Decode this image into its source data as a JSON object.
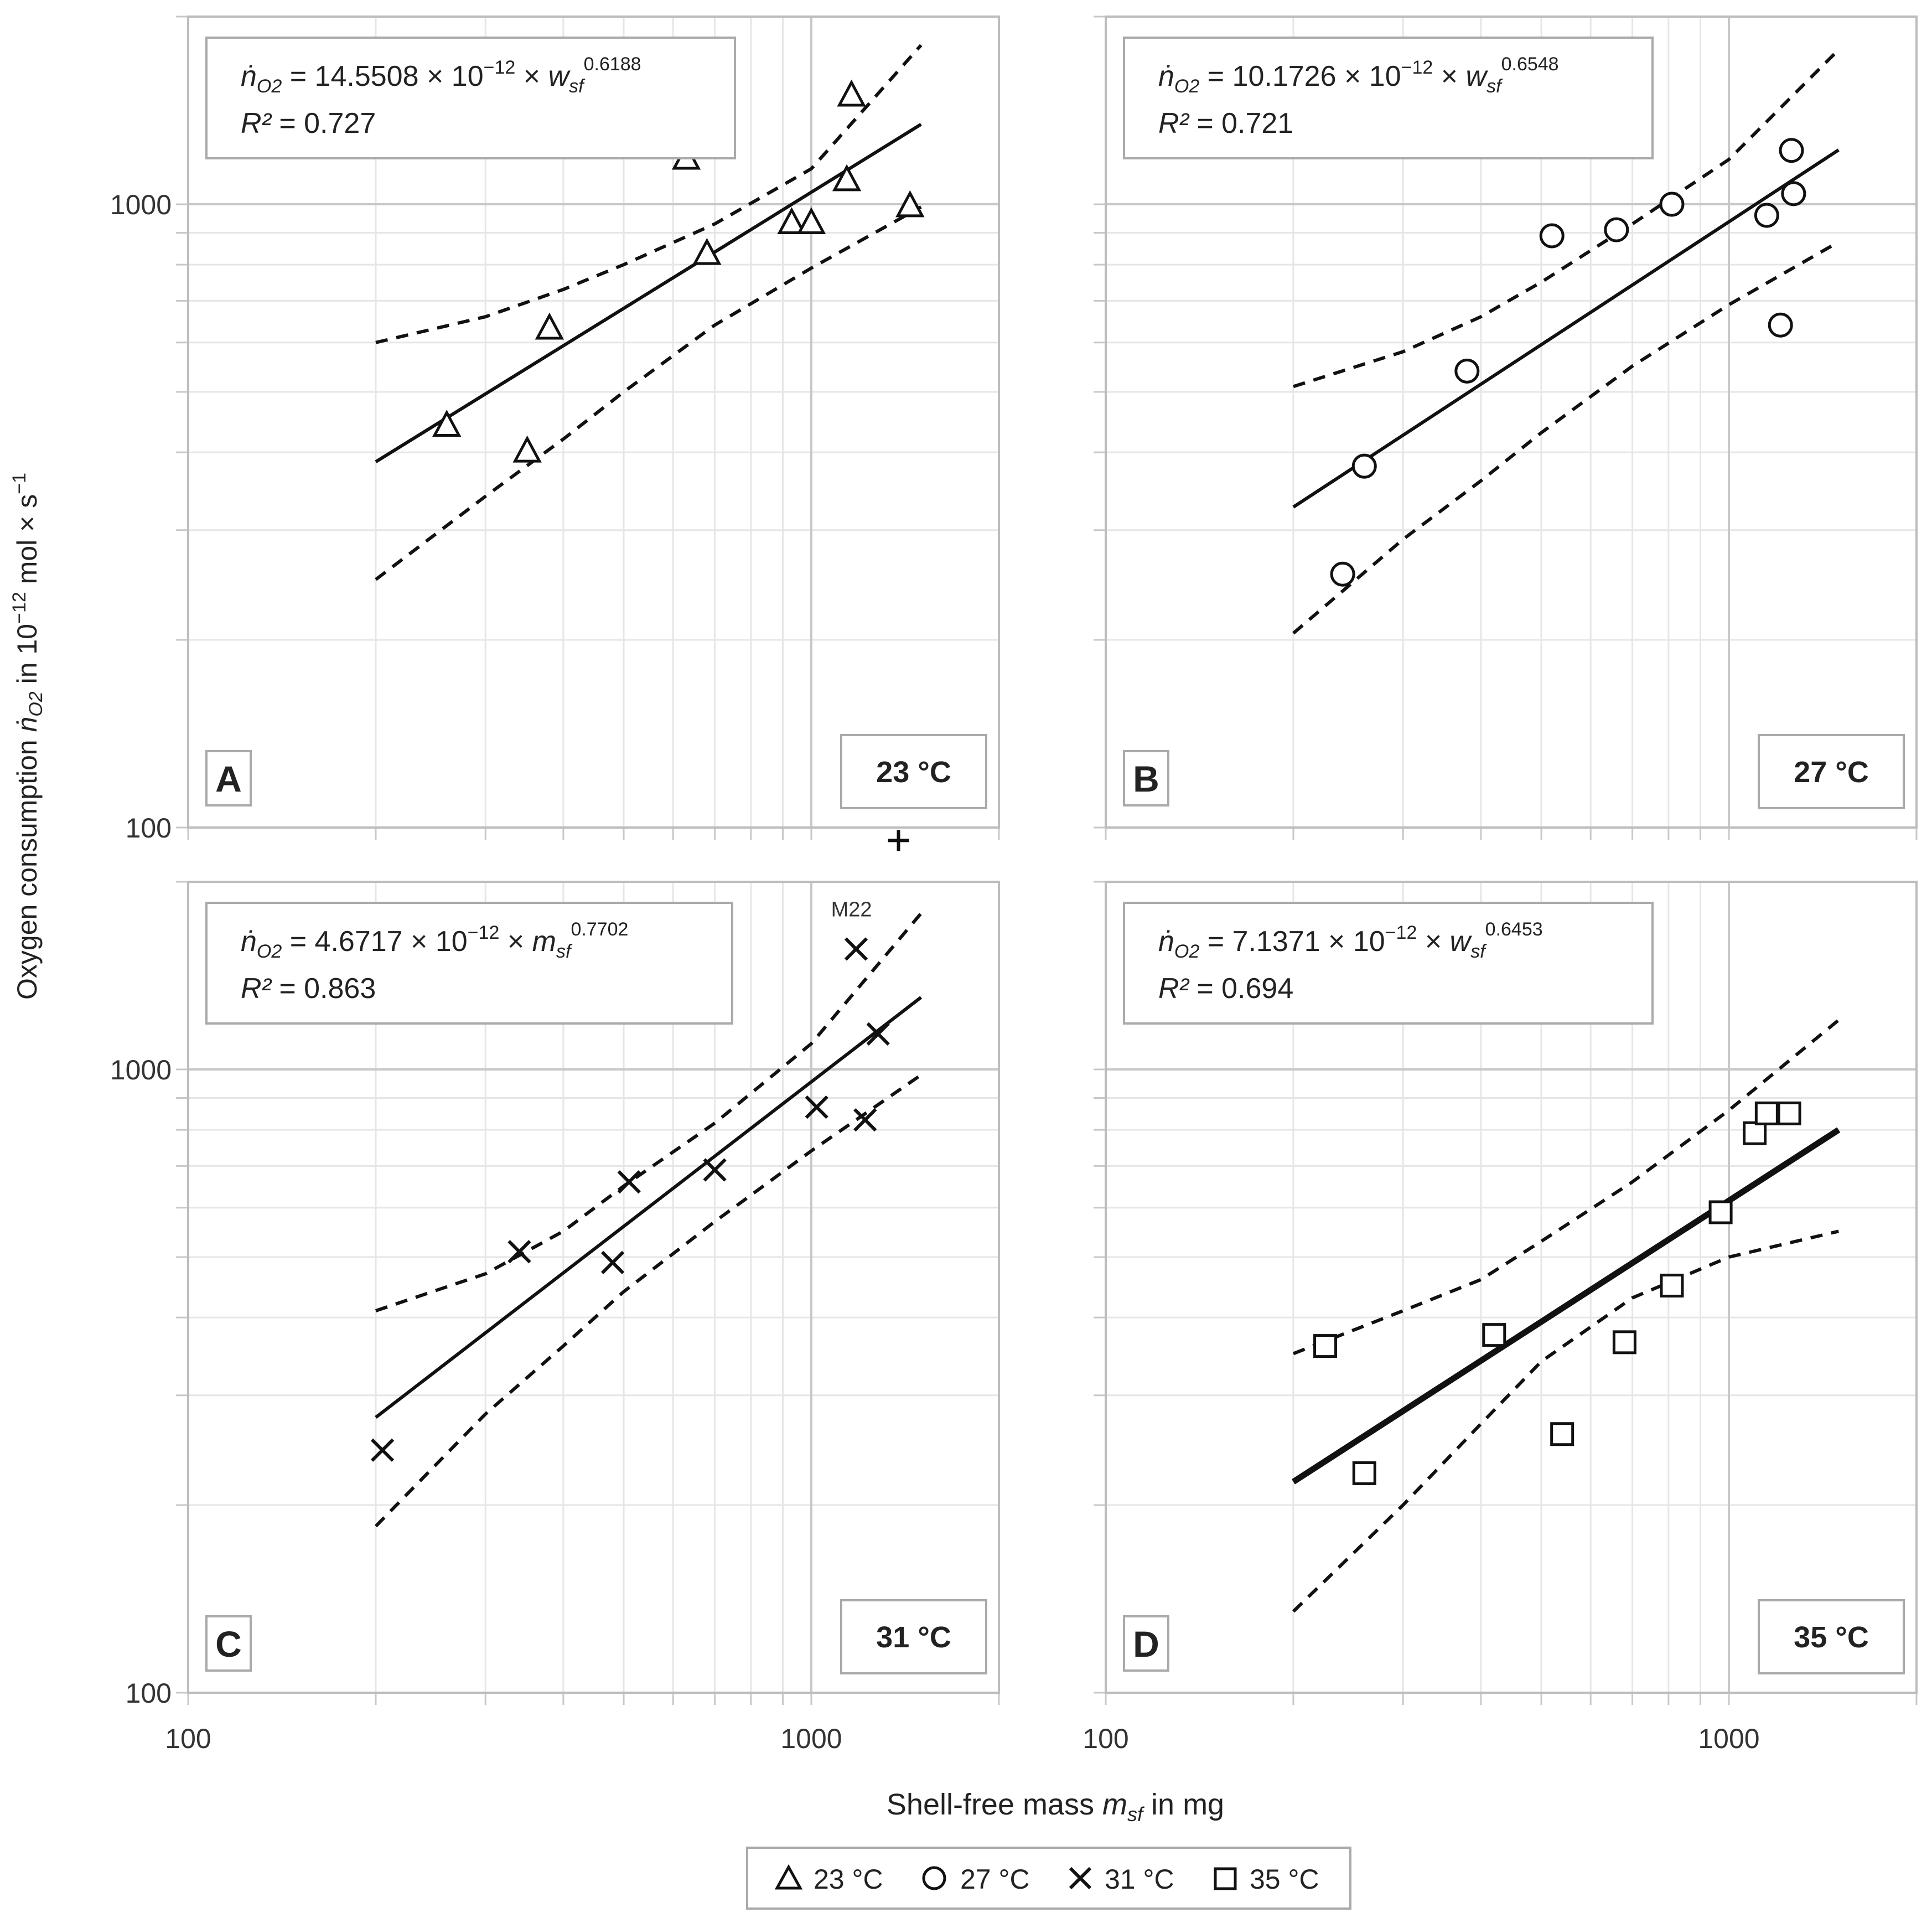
{
  "figure": {
    "ylabel_main": "Oxygen consumption ",
    "ylabel_symbol": "ṅ",
    "ylabel_sub": "O2",
    "ylabel_in": " in 10",
    "ylabel_exp": "−12",
    "ylabel_unit": " mol × s",
    "ylabel_unit_exp": "−1",
    "xlabel_main": "Shell-free mass ",
    "xlabel_symbol": "m",
    "xlabel_sub": "sf",
    "xlabel_unit": " in mg"
  },
  "legend": {
    "items": [
      {
        "marker": "triangle",
        "label": "23 °C"
      },
      {
        "marker": "circle",
        "label": "27 °C"
      },
      {
        "marker": "cross",
        "label": "31 °C"
      },
      {
        "marker": "square",
        "label": "35 °C"
      }
    ]
  },
  "chart_data": [
    {
      "type": "scatter",
      "panel": "A",
      "temp_label": "23 °C",
      "marker": "triangle",
      "eq_lhs": "ṅ",
      "eq_lhs_sub": "O2",
      "eq_mid": " = 14.5508 × 10",
      "eq_exp": "−12",
      "eq_times": " × ",
      "eq_var": "w",
      "eq_var_sub": "sf",
      "eq_pow": "0.6188",
      "r2_label": "R²",
      "r2_value": " = 0.727",
      "xlim": [
        100,
        2000
      ],
      "ylim": [
        100,
        2000
      ],
      "x_scale": "log",
      "y_scale": "log",
      "xticks": [],
      "yticks": [
        "100",
        "1000"
      ],
      "fit": {
        "coef": 14.5508,
        "exp": 0.6188,
        "x_range": [
          200,
          1500
        ]
      },
      "ci_upper": [
        [
          200,
          600
        ],
        [
          300,
          660
        ],
        [
          400,
          730
        ],
        [
          500,
          800
        ],
        [
          700,
          930
        ],
        [
          1000,
          1140
        ],
        [
          1500,
          1800
        ]
      ],
      "ci_lower": [
        [
          200,
          250
        ],
        [
          300,
          340
        ],
        [
          400,
          420
        ],
        [
          500,
          500
        ],
        [
          700,
          640
        ],
        [
          1000,
          790
        ],
        [
          1500,
          990
        ]
      ],
      "points": [
        [
          260,
          440
        ],
        [
          350,
          400
        ],
        [
          380,
          630
        ],
        [
          630,
          1180
        ],
        [
          680,
          830
        ],
        [
          930,
          930
        ],
        [
          1000,
          930
        ],
        [
          1140,
          1090
        ],
        [
          1160,
          1490
        ],
        [
          1440,
          990
        ]
      ],
      "annotations": []
    },
    {
      "type": "scatter",
      "panel": "B",
      "temp_label": "27 °C",
      "marker": "circle",
      "eq_lhs": "ṅ",
      "eq_lhs_sub": "O2",
      "eq_mid": " = 10.1726 × 10",
      "eq_exp": "−12",
      "eq_times": " × ",
      "eq_var": "w",
      "eq_var_sub": "sf",
      "eq_pow": "0.6548",
      "r2_label": "R²",
      "r2_value": " = 0.721",
      "xlim": [
        100,
        2000
      ],
      "ylim": [
        100,
        2000
      ],
      "x_scale": "log",
      "y_scale": "log",
      "xticks": [],
      "yticks": [],
      "fit": {
        "coef": 10.1726,
        "exp": 0.6548,
        "x_range": [
          200,
          1500
        ]
      },
      "ci_upper": [
        [
          200,
          510
        ],
        [
          300,
          580
        ],
        [
          400,
          660
        ],
        [
          500,
          750
        ],
        [
          700,
          930
        ],
        [
          1000,
          1180
        ],
        [
          1500,
          1770
        ]
      ],
      "ci_lower": [
        [
          200,
          205
        ],
        [
          300,
          290
        ],
        [
          400,
          360
        ],
        [
          500,
          430
        ],
        [
          700,
          550
        ],
        [
          1000,
          690
        ],
        [
          1500,
          870
        ]
      ],
      "points": [
        [
          240,
          255
        ],
        [
          260,
          380
        ],
        [
          380,
          540
        ],
        [
          520,
          890
        ],
        [
          660,
          910
        ],
        [
          810,
          1000
        ],
        [
          1150,
          960
        ],
        [
          1210,
          640
        ],
        [
          1260,
          1220
        ],
        [
          1270,
          1040
        ]
      ],
      "annotations": []
    },
    {
      "type": "scatter",
      "panel": "C",
      "temp_label": "31 °C",
      "marker": "cross",
      "eq_lhs": "ṅ",
      "eq_lhs_sub": "O2",
      "eq_mid": " = 4.6717 × 10",
      "eq_exp": "−12",
      "eq_times": " × ",
      "eq_var": "m",
      "eq_var_sub": "sf",
      "eq_pow": "0.7702",
      "r2_label": "R²",
      "r2_value": " = 0.863",
      "xlim": [
        100,
        2000
      ],
      "ylim": [
        100,
        2000
      ],
      "x_scale": "log",
      "y_scale": "log",
      "xticks": [
        "100",
        "1000"
      ],
      "yticks": [
        "100",
        "1000"
      ],
      "fit": {
        "coef": 4.6717,
        "exp": 0.7702,
        "x_range": [
          200,
          1500
        ]
      },
      "ci_upper": [
        [
          200,
          410
        ],
        [
          300,
          470
        ],
        [
          400,
          550
        ],
        [
          500,
          650
        ],
        [
          700,
          820
        ],
        [
          1000,
          1100
        ],
        [
          1500,
          1780
        ]
      ],
      "ci_lower": [
        [
          200,
          185
        ],
        [
          300,
          280
        ],
        [
          400,
          360
        ],
        [
          500,
          440
        ],
        [
          700,
          570
        ],
        [
          1000,
          740
        ],
        [
          1500,
          980
        ]
      ],
      "points": [
        [
          205,
          245
        ],
        [
          340,
          510
        ],
        [
          480,
          490
        ],
        [
          510,
          660
        ],
        [
          700,
          690
        ],
        [
          1020,
          870
        ],
        [
          1180,
          1560
        ],
        [
          1220,
          830
        ],
        [
          1280,
          1140
        ]
      ],
      "outliers": [
        [
          1380,
          2330
        ]
      ],
      "annotations": [
        {
          "label": "M22",
          "x": 1160,
          "y": 1760
        }
      ]
    },
    {
      "type": "scatter",
      "panel": "D",
      "temp_label": "35 °C",
      "marker": "square",
      "eq_lhs": "ṅ",
      "eq_lhs_sub": "O2",
      "eq_mid": " = 7.1371 × 10",
      "eq_exp": "−12",
      "eq_times": " × ",
      "eq_var": "w",
      "eq_var_sub": "sf",
      "eq_pow": "0.6453",
      "r2_label": "R²",
      "r2_value": " = 0.694",
      "xlim": [
        100,
        2000
      ],
      "ylim": [
        100,
        2000
      ],
      "x_scale": "log",
      "y_scale": "log",
      "xticks": [
        "100",
        "1000"
      ],
      "yticks": [],
      "fit": {
        "coef": 7.1371,
        "exp": 0.6453,
        "x_range": [
          200,
          1500
        ]
      },
      "ci_upper": [
        [
          200,
          350
        ],
        [
          300,
          410
        ],
        [
          400,
          460
        ],
        [
          500,
          530
        ],
        [
          700,
          660
        ],
        [
          1000,
          860
        ],
        [
          1500,
          1200
        ]
      ],
      "ci_lower": [
        [
          200,
          135
        ],
        [
          300,
          200
        ],
        [
          400,
          270
        ],
        [
          500,
          340
        ],
        [
          700,
          430
        ],
        [
          1000,
          500
        ],
        [
          1500,
          550
        ]
      ],
      "points": [
        [
          225,
          360
        ],
        [
          260,
          225
        ],
        [
          420,
          375
        ],
        [
          540,
          260
        ],
        [
          680,
          365
        ],
        [
          810,
          450
        ],
        [
          970,
          590
        ],
        [
          1100,
          790
        ],
        [
          1150,
          850
        ],
        [
          1250,
          850
        ]
      ],
      "annotations": []
    }
  ]
}
